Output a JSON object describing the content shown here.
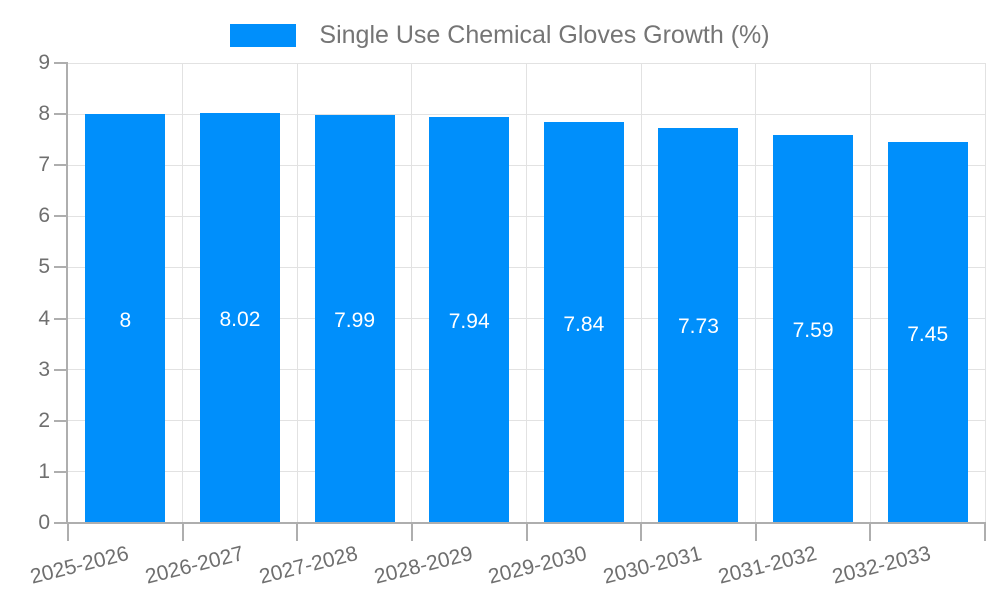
{
  "legend": {
    "label": "Single Use Chemical Gloves Growth (%)",
    "swatch_color": "#008FFB"
  },
  "chart_data": {
    "type": "bar",
    "title": "Single Use Chemical Gloves Growth (%)",
    "series_name": "Single Use Chemical Gloves Growth (%)",
    "categories": [
      "2025-2026",
      "2026-2027",
      "2027-2028",
      "2028-2029",
      "2029-2030",
      "2030-2031",
      "2031-2032",
      "2032-2033"
    ],
    "values": [
      8,
      8.02,
      7.99,
      7.94,
      7.84,
      7.73,
      7.59,
      7.45
    ],
    "value_labels": [
      "8",
      "8.02",
      "7.99",
      "7.94",
      "7.84",
      "7.73",
      "7.59",
      "7.45"
    ],
    "xlabel": "",
    "ylabel": "",
    "ylim": [
      0,
      9
    ],
    "y_ticks": [
      0,
      1,
      2,
      3,
      4,
      5,
      6,
      7,
      8,
      9
    ],
    "grid": true,
    "legend_position": "top",
    "bar_color": "#008FFB",
    "grid_color": "#e2e2e2",
    "axis_color": "#aeaeae",
    "label_color": "#6f6f6f",
    "data_label_color": "#ffffff"
  }
}
